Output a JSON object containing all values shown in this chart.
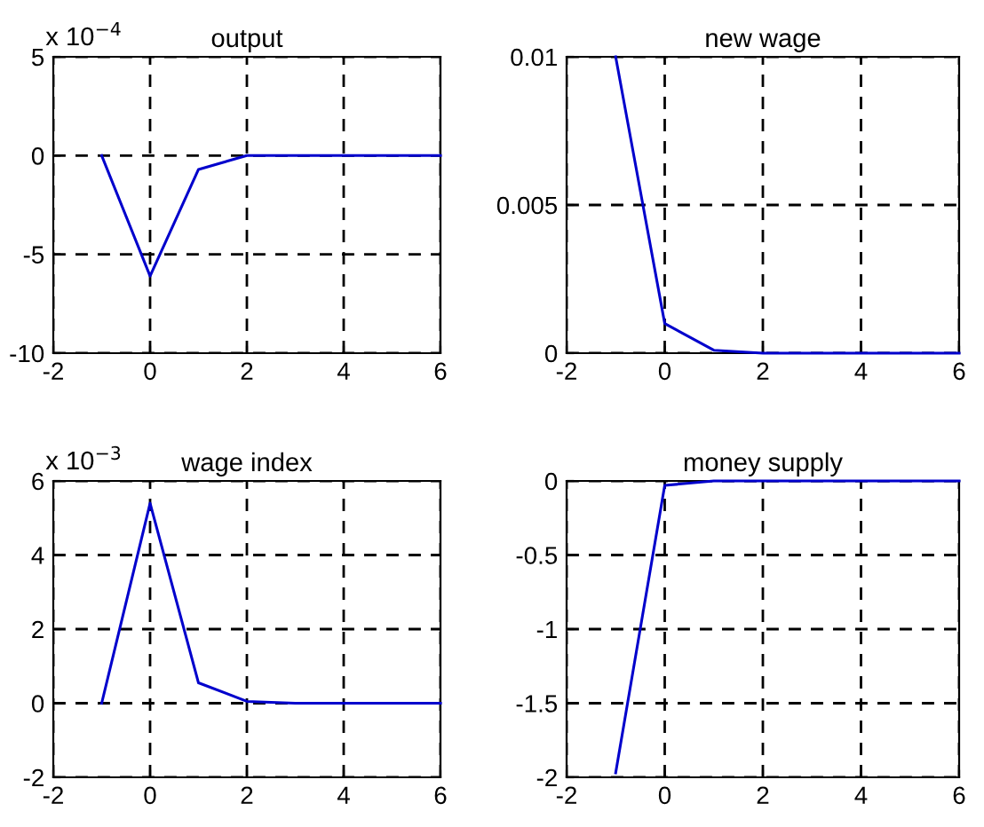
{
  "chart_data": [
    {
      "type": "line",
      "title": "output",
      "annotations": [
        "x 10$^{−4}$"
      ],
      "x": [
        -1,
        0,
        1,
        2,
        3,
        4,
        5,
        6
      ],
      "series": [
        {
          "color": "#0000cc",
          "values": [
            0,
            -6.1,
            -0.7,
            0,
            0,
            0,
            0,
            0
          ]
        }
      ],
      "xlim": [
        -2,
        6
      ],
      "xticks": [
        -2,
        0,
        2,
        4,
        6
      ],
      "ylim": [
        -10,
        5
      ],
      "yticks": [
        -10,
        -5,
        0,
        5
      ],
      "grid": true
    },
    {
      "type": "line",
      "title": "new wage",
      "x": [
        -1,
        0,
        1,
        2,
        3,
        4,
        5,
        6
      ],
      "series": [
        {
          "color": "#0000cc",
          "values": [
            0.01,
            0.001,
            0.0001,
            0,
            0,
            0,
            0,
            0
          ]
        }
      ],
      "xlim": [
        -2,
        6
      ],
      "xticks": [
        -2,
        0,
        2,
        4,
        6
      ],
      "ylim": [
        0,
        0.01
      ],
      "yticks": [
        0,
        0.005,
        0.01
      ],
      "grid": true
    },
    {
      "type": "line",
      "title": "wage index",
      "annotations": [
        "x 10$^{−3}$"
      ],
      "x": [
        -1,
        0,
        1,
        2,
        3,
        4,
        5,
        6
      ],
      "series": [
        {
          "color": "#0000cc",
          "values": [
            0,
            5.4,
            0.55,
            0.05,
            0,
            0,
            0,
            0
          ]
        }
      ],
      "xlim": [
        -2,
        6
      ],
      "xticks": [
        -2,
        0,
        2,
        4,
        6
      ],
      "ylim": [
        -2,
        6
      ],
      "yticks": [
        -2,
        0,
        2,
        4,
        6
      ],
      "grid": true
    },
    {
      "type": "line",
      "title": "money supply",
      "x": [
        -1,
        0,
        1,
        2,
        3,
        4,
        5,
        6
      ],
      "series": [
        {
          "color": "#0000cc",
          "values": [
            -1.97,
            -0.03,
            0,
            0,
            0,
            0,
            0,
            0
          ]
        }
      ],
      "xlim": [
        -2,
        6
      ],
      "xticks": [
        -2,
        0,
        2,
        4,
        6
      ],
      "ylim": [
        -2,
        0
      ],
      "yticks": [
        -2,
        -1.5,
        -1,
        -0.5,
        0
      ],
      "grid": true
    }
  ]
}
